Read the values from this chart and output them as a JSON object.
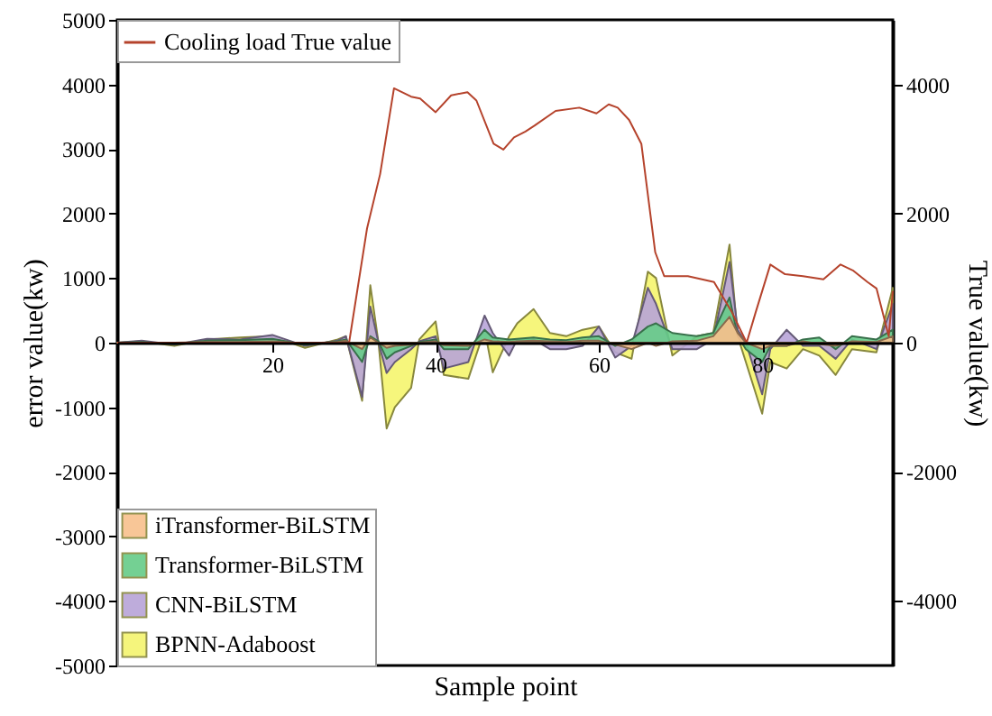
{
  "chart_data": {
    "type": "area",
    "xlabel": "Sample point",
    "ylabel": "error value(kw)",
    "y2label": "True value(kw)",
    "xlim": [
      1,
      96
    ],
    "xticks": [
      20,
      40,
      60,
      80
    ],
    "ylim": [
      -5000,
      5000
    ],
    "yticks": [
      -5000,
      -4000,
      -3000,
      -2000,
      -1000,
      0,
      1000,
      2000,
      3000,
      4000,
      5000
    ],
    "y2lim": [
      -5000,
      5000
    ],
    "y2ticks": [
      -4000,
      -2000,
      0,
      2000,
      4000
    ],
    "legend": "bottom left",
    "grid": false,
    "x": [
      1,
      4,
      8,
      12,
      16,
      20,
      24,
      28,
      29,
      31,
      32,
      33,
      34,
      35,
      37,
      38,
      40,
      41,
      44,
      46,
      47,
      49,
      50,
      52,
      54,
      56,
      58,
      60,
      62,
      64,
      66,
      67,
      69,
      72,
      74,
      76,
      77,
      78,
      80,
      81,
      83,
      85,
      87,
      89,
      91,
      94,
      96
    ],
    "series": [
      {
        "name": "iTransformer-BiLSTM",
        "color": "#f8c08c",
        "values": [
          0,
          0,
          0,
          10,
          10,
          20,
          -10,
          10,
          30,
          -100,
          80,
          0,
          -80,
          -50,
          -30,
          0,
          20,
          -40,
          -50,
          50,
          20,
          10,
          20,
          30,
          20,
          10,
          30,
          30,
          -30,
          -100,
          0,
          -50,
          20,
          30,
          100,
          400,
          150,
          0,
          -100,
          -50,
          -50,
          20,
          -20,
          -50,
          20,
          10,
          100
        ]
      },
      {
        "name": "Transformer-BiLSTM",
        "color": "#66cc88",
        "values": [
          0,
          10,
          -20,
          30,
          40,
          60,
          -30,
          20,
          50,
          -300,
          100,
          20,
          -250,
          -150,
          -50,
          10,
          50,
          -100,
          -100,
          200,
          80,
          50,
          60,
          80,
          50,
          40,
          80,
          100,
          -50,
          50,
          250,
          300,
          150,
          100,
          150,
          700,
          100,
          -100,
          -300,
          -50,
          -50,
          50,
          80,
          -100,
          100,
          50,
          200
        ]
      },
      {
        "name": "CNN-BiLSTM",
        "color": "#b8a4d8",
        "values": [
          0,
          30,
          -30,
          60,
          50,
          120,
          -50,
          30,
          100,
          -840,
          560,
          0,
          -470,
          -300,
          -100,
          20,
          100,
          -400,
          -300,
          420,
          150,
          -200,
          50,
          50,
          -100,
          -100,
          -50,
          250,
          -230,
          -50,
          850,
          600,
          -100,
          -100,
          50,
          1250,
          200,
          0,
          -800,
          -100,
          200,
          -50,
          -50,
          -250,
          50,
          -100,
          600
        ]
      },
      {
        "name": "BPNN-Adaboost",
        "color": "#f5f56e",
        "values": [
          0,
          20,
          -50,
          50,
          80,
          100,
          -80,
          50,
          100,
          -900,
          890,
          0,
          -1330,
          -1000,
          -700,
          50,
          330,
          -500,
          -560,
          200,
          -460,
          100,
          300,
          520,
          150,
          100,
          200,
          250,
          -150,
          -250,
          1100,
          1000,
          -200,
          100,
          150,
          1520,
          100,
          -300,
          -1100,
          -300,
          -400,
          -100,
          -200,
          -500,
          -100,
          -150,
          850
        ]
      },
      {
        "name": "Cooling load True value",
        "type": "line",
        "axis": "y2",
        "color": "#b5432c",
        "x": [
          1,
          29.4,
          31.6,
          33.2,
          34.9,
          37,
          38.1,
          40,
          41.9,
          43.9,
          45,
          47.1,
          48.3,
          49.6,
          51,
          52.1,
          54.7,
          57.6,
          59.7,
          61.2,
          62.3,
          63.7,
          65.2,
          66.9,
          68,
          70.9,
          74.1,
          76.3,
          78.1,
          79.2,
          81,
          82.8,
          85,
          87.5,
          89.6,
          91.1,
          92.9,
          94,
          95.5,
          96
        ],
        "values": [
          0,
          0,
          1770,
          2610,
          3940,
          3810,
          3780,
          3570,
          3830,
          3880,
          3750,
          3080,
          2990,
          3180,
          3270,
          3360,
          3590,
          3640,
          3550,
          3690,
          3640,
          3450,
          3080,
          1400,
          1030,
          1030,
          940,
          470,
          0,
          470,
          1210,
          1060,
          1030,
          980,
          1210,
          1120,
          940,
          840,
          100,
          800
        ]
      }
    ]
  }
}
